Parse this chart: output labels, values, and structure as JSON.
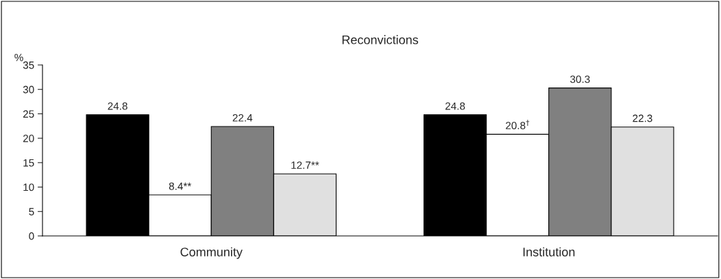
{
  "chart_data": {
    "type": "bar",
    "title": "Reconvictions",
    "ylabel": "%",
    "categories": [
      "Community",
      "Institution"
    ],
    "series": [
      {
        "color": "#000000",
        "values": [
          24.8,
          24.8
        ],
        "value_labels": [
          "24.8",
          "24.8"
        ]
      },
      {
        "color": "#ffffff",
        "values": [
          8.4,
          20.8
        ],
        "value_labels": [
          "8.4**",
          "20.8$^{†}$"
        ]
      },
      {
        "color": "#808080",
        "values": [
          22.4,
          30.3
        ],
        "value_labels": [
          "22.4",
          "30.3"
        ]
      },
      {
        "color": "#e0e0e0",
        "values": [
          12.7,
          22.3
        ],
        "value_labels": [
          "12.7**",
          "22.3"
        ]
      }
    ],
    "ylim": [
      0,
      35
    ],
    "yticks": [
      0,
      5,
      10,
      15,
      20,
      25,
      30,
      35
    ],
    "grid": false,
    "legend": false
  }
}
